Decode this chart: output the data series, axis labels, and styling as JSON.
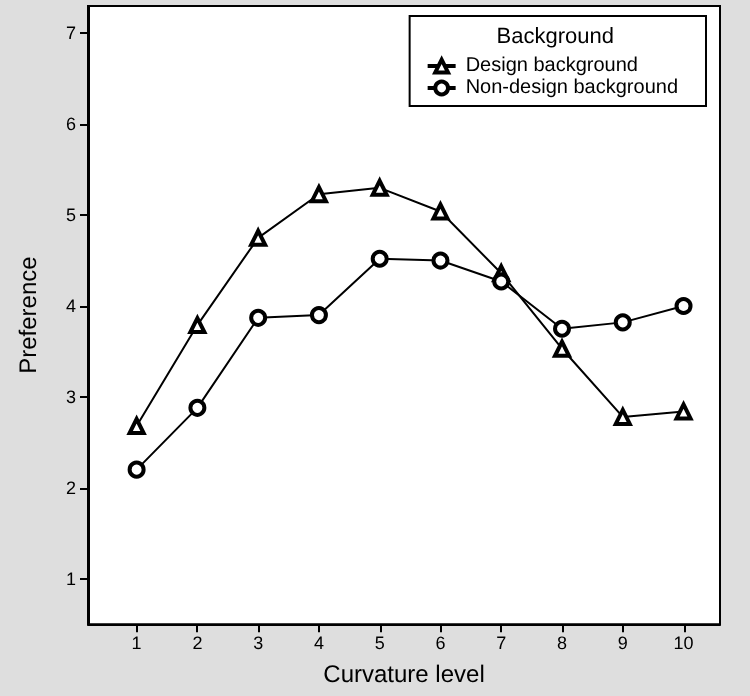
{
  "chart_data": {
    "type": "line",
    "xlabel": "Curvature level",
    "ylabel": "Preference",
    "legend_title": "Background",
    "legend": "top right",
    "grid": false,
    "line_style": "solid",
    "x": [
      1,
      2,
      3,
      4,
      5,
      6,
      7,
      8,
      9,
      10
    ],
    "xlim": [
      0.2,
      10.6
    ],
    "xticks": [
      1,
      2,
      3,
      4,
      5,
      6,
      7,
      8,
      9,
      10
    ],
    "ylim": [
      0.5,
      7.3
    ],
    "yticks": [
      1,
      2,
      3,
      4,
      5,
      6,
      7
    ],
    "series": [
      {
        "name": "Design background",
        "color": "#000000",
        "marker": "triangle",
        "values": [
          2.68,
          3.79,
          4.75,
          5.23,
          5.3,
          5.04,
          4.36,
          3.53,
          2.78,
          2.84
        ]
      },
      {
        "name": "Non-design background",
        "color": "#000000",
        "marker": "circle",
        "values": [
          2.2,
          2.88,
          3.87,
          3.9,
          4.52,
          4.5,
          4.27,
          3.75,
          3.82,
          4.0
        ]
      }
    ]
  }
}
